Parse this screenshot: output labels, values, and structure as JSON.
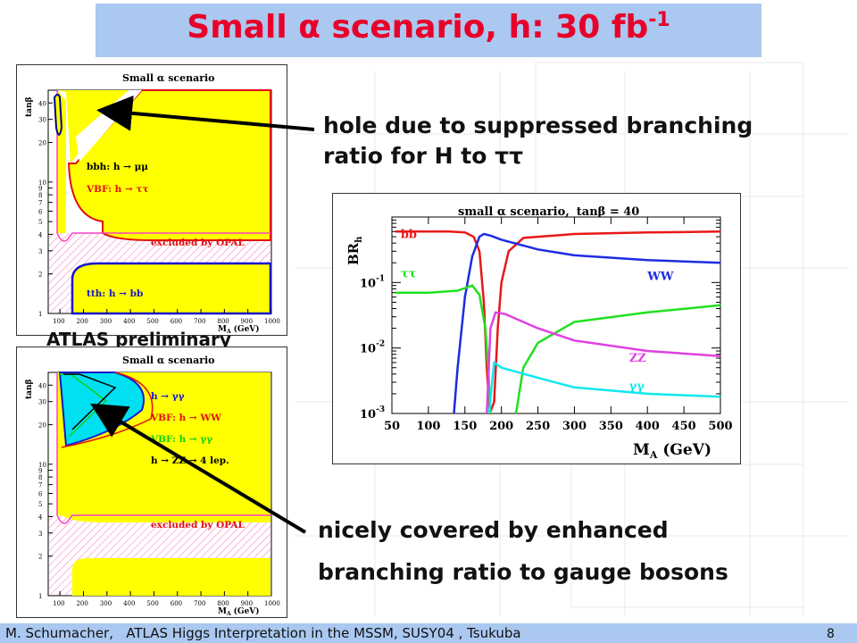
{
  "slide": {
    "title_main": "Small α scenario, h: 30 fb",
    "title_sup": "-1",
    "atlas_label": "ATLAS preliminary",
    "annotation_top_line1": "hole due to suppressed branching",
    "annotation_top_line2": "ratio for H to ττ",
    "annotation_bottom_line1": "nicely covered by enhanced",
    "annotation_bottom_line2": "branching ratio to gauge bosons",
    "footer_author": "M. Schumacher,",
    "footer_talk": "ATLAS Higgs Interpretation in the  MSSM, SUSY04 , Tsukuba",
    "page_number": "8"
  },
  "plot_top": {
    "title": "Small α scenario",
    "ylabel": "tanβ",
    "xlabel": "M_A (GeV)",
    "xlabel_main": "M",
    "xlabel_sub": "A",
    "xlabel_unit": "(GeV)",
    "x_ticks": [
      "100",
      "200",
      "300",
      "400",
      "500",
      "600",
      "700",
      "800",
      "900",
      "1000"
    ],
    "y_ticks": [
      "1",
      "2",
      "3",
      "4",
      "5",
      "6",
      "7",
      "8",
      "9",
      "10",
      "20",
      "30",
      "40"
    ],
    "legend": [
      "bbh: h → μμ",
      "VBF: h → ττ",
      "excluded by OPAL",
      "tth: h → bb"
    ],
    "colors": {
      "yellow": "#ffff00",
      "red": "#e01010",
      "blue": "#1818c8",
      "navy": "#000080",
      "magenta": "#ff40c0",
      "hatch": "#ff80c0"
    }
  },
  "plot_bottom": {
    "title": "Small α scenario",
    "ylabel": "tanβ",
    "xlabel": "M_A (GeV)",
    "xlabel_main": "M",
    "xlabel_sub": "A",
    "xlabel_unit": "(GeV)",
    "x_ticks": [
      "100",
      "200",
      "300",
      "400",
      "500",
      "600",
      "700",
      "800",
      "900",
      "1000"
    ],
    "y_ticks": [
      "1",
      "2",
      "3",
      "4",
      "5",
      "6",
      "7",
      "8",
      "9",
      "10",
      "20",
      "30",
      "40"
    ],
    "legend": [
      "h → γγ",
      "VBF: h → WW",
      "VBF: h → γγ",
      "h → ZZ → 4 lep.",
      "excluded by OPAL"
    ],
    "colors": {
      "cyan": "#00e0f0",
      "yellow": "#ffff00",
      "blue": "#1818c8",
      "red": "#e01010",
      "green": "#10d010",
      "magenta": "#ff40c0"
    }
  },
  "chart_data": {
    "type": "line",
    "title": "small α scenario,  tanβ = 40",
    "title_text": "small α scenario,",
    "title_tanb": "tanβ = 40",
    "xlabel": "M_A (GeV)",
    "xlabel_main": "M",
    "xlabel_sub": "A",
    "xlabel_unit": "(GeV)",
    "ylabel": "BR_h",
    "ylabel_main": "BR",
    "ylabel_sub": "h",
    "xlim": [
      50,
      500
    ],
    "ylim": [
      0.001,
      1
    ],
    "yscale": "log",
    "x_ticks": [
      50,
      100,
      150,
      200,
      250,
      300,
      350,
      400,
      450,
      500
    ],
    "y_ticks": [
      {
        "base": "10",
        "exp": "-1",
        "value": 0.1
      },
      {
        "base": "10",
        "exp": "-2",
        "value": 0.01
      },
      {
        "base": "10",
        "exp": "-3",
        "value": 0.001
      }
    ],
    "series": [
      {
        "name": "bb",
        "color": "#e81818",
        "points": [
          [
            55,
            0.6
          ],
          [
            100,
            0.6
          ],
          [
            130,
            0.6
          ],
          [
            150,
            0.58
          ],
          [
            162,
            0.5
          ],
          [
            170,
            0.3
          ],
          [
            176,
            0.05
          ],
          [
            180,
            0.005
          ],
          [
            184,
            0.001
          ],
          [
            190,
            0.0015
          ],
          [
            195,
            0.02
          ],
          [
            200,
            0.1
          ],
          [
            210,
            0.3
          ],
          [
            230,
            0.48
          ],
          [
            300,
            0.55
          ],
          [
            400,
            0.58
          ],
          [
            500,
            0.6
          ]
        ]
      },
      {
        "name": "WW",
        "color": "#1c2ce0",
        "points": [
          [
            135,
            0.001
          ],
          [
            140,
            0.005
          ],
          [
            150,
            0.06
          ],
          [
            160,
            0.25
          ],
          [
            170,
            0.5
          ],
          [
            176,
            0.55
          ],
          [
            185,
            0.52
          ],
          [
            200,
            0.45
          ],
          [
            250,
            0.32
          ],
          [
            300,
            0.26
          ],
          [
            400,
            0.22
          ],
          [
            500,
            0.2
          ]
        ]
      },
      {
        "name": "ττ",
        "color": "#20e020",
        "points": [
          [
            55,
            0.07
          ],
          [
            100,
            0.07
          ],
          [
            140,
            0.075
          ],
          [
            160,
            0.09
          ],
          [
            170,
            0.065
          ],
          [
            178,
            0.02
          ],
          [
            182,
            0.005
          ],
          [
            185,
            0.001
          ]
        ]
      },
      {
        "name": "ττ (heavy)",
        "color": "#20e020",
        "points": [
          [
            220,
            0.001
          ],
          [
            230,
            0.005
          ],
          [
            250,
            0.012
          ],
          [
            300,
            0.025
          ],
          [
            400,
            0.035
          ],
          [
            500,
            0.045
          ]
        ]
      },
      {
        "name": "ZZ",
        "color": "#e040e0",
        "points": [
          [
            180,
            0.001
          ],
          [
            185,
            0.02
          ],
          [
            192,
            0.035
          ],
          [
            205,
            0.033
          ],
          [
            250,
            0.02
          ],
          [
            300,
            0.013
          ],
          [
            400,
            0.009
          ],
          [
            500,
            0.0075
          ]
        ]
      },
      {
        "name": "γγ",
        "color": "#10e8f0",
        "points": [
          [
            183,
            0.001
          ],
          [
            190,
            0.006
          ],
          [
            200,
            0.005
          ],
          [
            250,
            0.0035
          ],
          [
            300,
            0.0025
          ],
          [
            400,
            0.002
          ],
          [
            500,
            0.0018
          ]
        ]
      }
    ],
    "labels": [
      {
        "text": "bb",
        "color": "#e81818",
        "x": 62,
        "y": 0.48
      },
      {
        "text": "ττ",
        "color": "#20e020",
        "x": 62,
        "y": 0.12
      },
      {
        "text": "WW",
        "color": "#1c2ce0",
        "x": 400,
        "y": 0.11
      },
      {
        "text": "ZZ",
        "color": "#e040e0",
        "x": 375,
        "y": 0.0062
      },
      {
        "text": "γγ",
        "color": "#10e8f0",
        "x": 375,
        "y": 0.0023
      }
    ]
  }
}
